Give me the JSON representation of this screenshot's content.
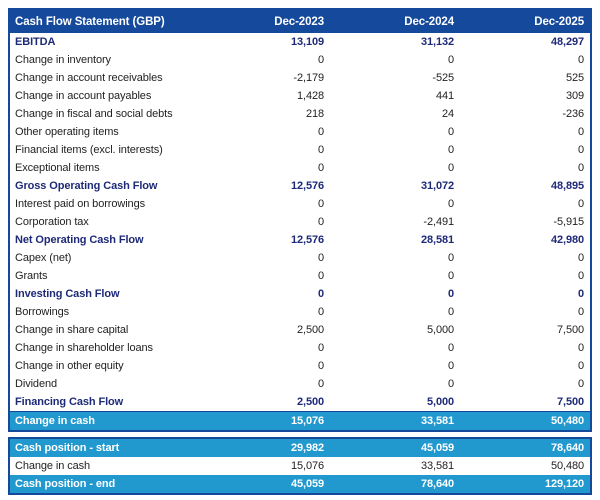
{
  "header": {
    "title": "Cash Flow Statement (GBP)",
    "columns": [
      "Dec-2023",
      "Dec-2024",
      "Dec-2025"
    ]
  },
  "colors": {
    "header_bg": "#15499c",
    "border": "#15499c",
    "highlight_bg": "#2199cf",
    "section_text": "#1e2a78"
  },
  "table": {
    "rows": [
      {
        "label": "EBITDA",
        "values": [
          "13,109",
          "31,132",
          "48,297"
        ],
        "style": "section"
      },
      {
        "label": "Change in inventory",
        "values": [
          "0",
          "0",
          "0"
        ],
        "style": "item"
      },
      {
        "label": "Change in account receivables",
        "values": [
          "-2,179",
          "-525",
          "525"
        ],
        "style": "item"
      },
      {
        "label": "Change in account payables",
        "values": [
          "1,428",
          "441",
          "309"
        ],
        "style": "item"
      },
      {
        "label": "Change in fiscal and social debts",
        "values": [
          "218",
          "24",
          "-236"
        ],
        "style": "item"
      },
      {
        "label": "Other operating items",
        "values": [
          "0",
          "0",
          "0"
        ],
        "style": "item"
      },
      {
        "label": "Financial items (excl. interests)",
        "values": [
          "0",
          "0",
          "0"
        ],
        "style": "item"
      },
      {
        "label": "Exceptional items",
        "values": [
          "0",
          "0",
          "0"
        ],
        "style": "item"
      },
      {
        "label": "Gross Operating Cash Flow",
        "values": [
          "12,576",
          "31,072",
          "48,895"
        ],
        "style": "section"
      },
      {
        "label": "Interest paid on borrowings",
        "values": [
          "0",
          "0",
          "0"
        ],
        "style": "item"
      },
      {
        "label": "Corporation tax",
        "values": [
          "0",
          "-2,491",
          "-5,915"
        ],
        "style": "item"
      },
      {
        "label": "Net Operating Cash Flow",
        "values": [
          "12,576",
          "28,581",
          "42,980"
        ],
        "style": "section"
      },
      {
        "label": "Capex (net)",
        "values": [
          "0",
          "0",
          "0"
        ],
        "style": "item"
      },
      {
        "label": "Grants",
        "values": [
          "0",
          "0",
          "0"
        ],
        "style": "item"
      },
      {
        "label": "Investing Cash Flow",
        "values": [
          "0",
          "0",
          "0"
        ],
        "style": "section"
      },
      {
        "label": "Borrowings",
        "values": [
          "0",
          "0",
          "0"
        ],
        "style": "item"
      },
      {
        "label": "Change in share capital",
        "values": [
          "2,500",
          "5,000",
          "7,500"
        ],
        "style": "item"
      },
      {
        "label": "Change in shareholder loans",
        "values": [
          "0",
          "0",
          "0"
        ],
        "style": "item"
      },
      {
        "label": "Change in other equity",
        "values": [
          "0",
          "0",
          "0"
        ],
        "style": "item"
      },
      {
        "label": "Dividend",
        "values": [
          "0",
          "0",
          "0"
        ],
        "style": "item"
      },
      {
        "label": "Financing Cash Flow",
        "values": [
          "2,500",
          "5,000",
          "7,500"
        ],
        "style": "section"
      },
      {
        "label": "Change in cash",
        "values": [
          "15,076",
          "33,581",
          "50,480"
        ],
        "style": "highlight"
      }
    ]
  },
  "summary": {
    "rows": [
      {
        "label": "Cash position - start",
        "values": [
          "29,982",
          "45,059",
          "78,640"
        ],
        "style": "highlight"
      },
      {
        "label": "Change in cash",
        "values": [
          "15,076",
          "33,581",
          "50,480"
        ],
        "style": "item"
      },
      {
        "label": "Cash position - end",
        "values": [
          "45,059",
          "78,640",
          "129,120"
        ],
        "style": "highlight"
      }
    ]
  }
}
